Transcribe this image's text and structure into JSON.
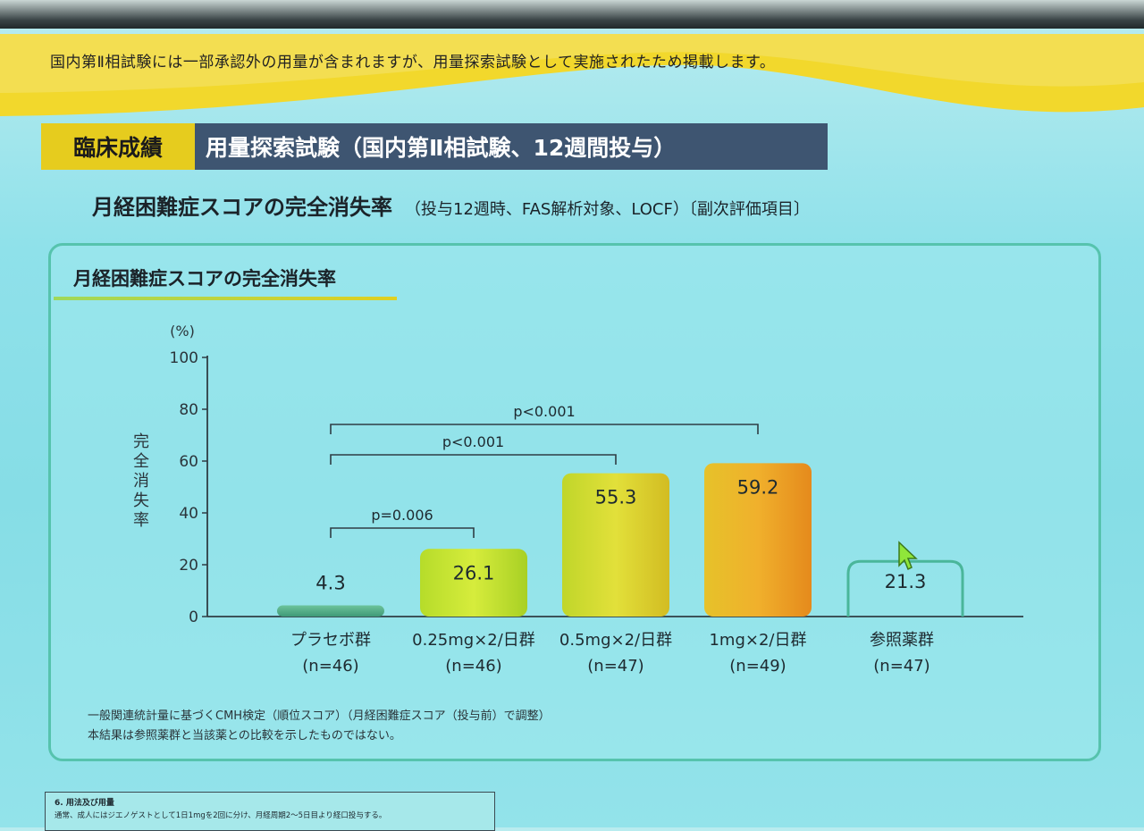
{
  "notice": "国内第Ⅱ相試験には一部承認外の用量が含まれますが、用量探索試験として実施されたため掲載します。",
  "header": {
    "left_label": "臨床成績",
    "right_label": "用量探索試験（国内第Ⅱ相試験、12週間投与）"
  },
  "title": {
    "main": "月経困難症スコアの完全消失率",
    "sub": "（投与12週時、FAS解析対象、LOCF）〔副次評価項目〕"
  },
  "panel_title": "月経困難症スコアの完全消失率",
  "footnotes": [
    "一般関連統計量に基づくCMH検定（順位スコア）（月経困難症スコア（投与前）で調整）",
    "本結果は参照薬群と当該薬との比較を示したものではない。"
  ],
  "bottom_box": {
    "title": "6. 用法及び用量",
    "text": "通常、成人にはジエノゲストとして1日1mgを2回に分け、月経周期2～5日目より経口投与する。"
  },
  "colors": {
    "placebo": "#4fb08a",
    "dose_025": "#c6e030",
    "dose_05": "#d8d828",
    "dose_1": "#eda424",
    "reference_outline": "#4ab69a",
    "axis": "#2f3d44"
  },
  "chart_data": {
    "type": "bar",
    "y_unit_label": "(%)",
    "ylabel": "完全消失率",
    "ylim": [
      0,
      100
    ],
    "yticks": [
      0,
      20,
      40,
      60,
      80,
      100
    ],
    "categories": [
      {
        "name": "プラセボ群",
        "n": "(n=46)"
      },
      {
        "name": "0.25mg×2/日群",
        "n": "(n=46)"
      },
      {
        "name": "0.5mg×2/日群",
        "n": "(n=47)"
      },
      {
        "name": "1mg×2/日群",
        "n": "(n=49)"
      },
      {
        "name": "参照薬群",
        "n": "(n=47)"
      }
    ],
    "values": [
      4.3,
      26.1,
      55.3,
      59.2,
      21.3
    ],
    "value_labels": [
      "4.3",
      "26.1",
      "55.3",
      "59.2",
      "21.3"
    ],
    "comparisons": [
      {
        "from": 0,
        "to": 1,
        "label": "p=0.006"
      },
      {
        "from": 0,
        "to": 2,
        "label": "p<0.001"
      },
      {
        "from": 0,
        "to": 3,
        "label": "p<0.001"
      }
    ]
  }
}
